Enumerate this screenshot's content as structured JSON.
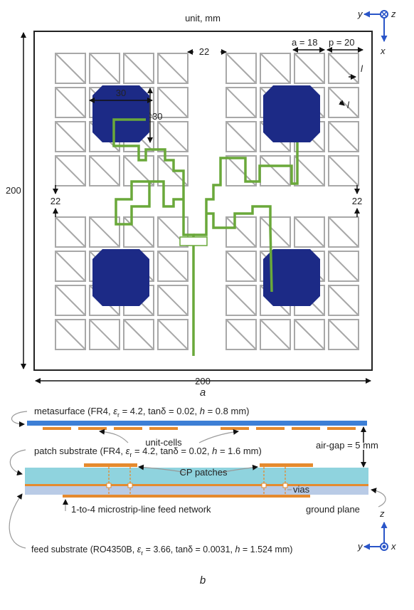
{
  "part_a": {
    "unit": "unit, mm",
    "dims": {
      "a": "a = 18",
      "p": "p = 20",
      "l_edge": "l",
      "l_diag": "l",
      "gap_top": "22",
      "patch_w": "30",
      "patch_h": "30",
      "size_y": "200",
      "gap_left": "22",
      "gap_right": "22",
      "size_x": "200"
    },
    "axes": {
      "y": "y",
      "z": "z",
      "x": "x"
    },
    "caption": "a"
  },
  "part_b": {
    "metasurface": [
      "metasurface (FR4, ",
      "ε",
      "r",
      " = 4.2, tanδ = 0.02, ",
      "h",
      " = 0.8 mm)"
    ],
    "unit_cells": "unit-cells",
    "air_gap": "air-gap = 5 mm",
    "patch_substrate": [
      "patch substrate (FR4, ",
      "ε",
      "r",
      " = 4.2, tanδ = 0.02, ",
      "h",
      " = 1.6 mm)"
    ],
    "cp_patches": "CP patches",
    "vias": "vias",
    "feed_network": "1-to-4 microstrip-line feed network",
    "ground_plane": "ground plane",
    "feed_substrate": [
      "feed substrate (RO4350B, ",
      "ε",
      "r",
      " = 3.66, tanδ = 0.0031, ",
      "h",
      " = 1.524 mm)"
    ],
    "axes": {
      "z": "z",
      "y": "y",
      "x": "x"
    },
    "caption": "b"
  }
}
